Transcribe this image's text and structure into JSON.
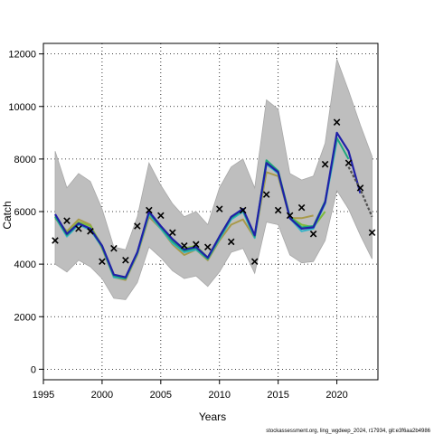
{
  "chart_data": {
    "type": "line",
    "xlabel": "Years",
    "ylabel": "Catch",
    "xlim": [
      1995,
      2023.5
    ],
    "ylim": [
      -400,
      12400
    ],
    "xticks": [
      1995,
      2000,
      2005,
      2010,
      2015,
      2020
    ],
    "yticks": [
      0,
      2000,
      4000,
      6000,
      8000,
      10000,
      12000
    ],
    "grid": true,
    "footer": "stockassessment.org, ling_wgdeep_2024, r17934, git:e3f6aa2b4986",
    "colors": {
      "band": "#bebebe",
      "band_edge": "#a8a8a8",
      "current": "#2020a8",
      "retro": [
        "#1fa87c",
        "#35b3c8",
        "#7dbb3c",
        "#a89a4a"
      ],
      "observed": "#000000",
      "forecast": "#505050"
    },
    "band": {
      "x": [
        1996,
        1997,
        1998,
        1999,
        2000,
        2001,
        2002,
        2003,
        2004,
        2005,
        2006,
        2007,
        2008,
        2009,
        2010,
        2011,
        2012,
        2013,
        2014,
        2015,
        2016,
        2017,
        2018,
        2019,
        2020,
        2021,
        2022,
        2023
      ],
      "upper": [
        8300,
        6900,
        7450,
        7150,
        6100,
        4650,
        4550,
        5800,
        7850,
        7000,
        6300,
        5800,
        6000,
        5500,
        6900,
        7700,
        8000,
        6900,
        10250,
        9900,
        7450,
        7200,
        7350,
        8600,
        11800,
        10600,
        9300,
        8100
      ],
      "lower": [
        4000,
        3700,
        4150,
        3900,
        3450,
        2700,
        2650,
        3300,
        4650,
        4250,
        3750,
        3450,
        3550,
        3150,
        3700,
        4450,
        4600,
        3650,
        5600,
        5500,
        4350,
        4050,
        4100,
        4900,
        6800,
        6100,
        5100,
        4200
      ]
    },
    "observed": {
      "name": "Observed catch",
      "x": [
        1996,
        1997,
        1998,
        1999,
        2000,
        2001,
        2002,
        2003,
        2004,
        2005,
        2006,
        2007,
        2008,
        2009,
        2010,
        2011,
        2012,
        2013,
        2014,
        2015,
        2016,
        2017,
        2018,
        2019,
        2020,
        2021,
        2022,
        2023
      ],
      "y": [
        4900,
        5650,
        5350,
        5250,
        4100,
        4600,
        4150,
        5450,
        6050,
        5850,
        5200,
        4700,
        4750,
        4650,
        6100,
        4850,
        6050,
        4100,
        6650,
        6050,
        5850,
        6150,
        5150,
        7800,
        9400,
        7850,
        6900,
        5200
      ]
    },
    "forecast": {
      "x": [
        2021,
        2022,
        2023
      ],
      "y": [
        7700,
        6850,
        5800
      ]
    },
    "series": [
      {
        "x": [
          1996,
          1997,
          1998,
          1999,
          2000,
          2001,
          2002,
          2003,
          2004,
          2005,
          2006,
          2007,
          2008,
          2009,
          2010,
          2011,
          2012,
          2013,
          2014,
          2015,
          2016,
          2017,
          2018,
          2019,
          2020,
          2021,
          2022
        ],
        "y": [
          5900,
          5150,
          5550,
          5350,
          4700,
          3600,
          3500,
          4450,
          6000,
          5450,
          4950,
          4550,
          4650,
          4250,
          5050,
          5800,
          6100,
          5100,
          7850,
          7500,
          5750,
          5350,
          5400,
          6350,
          9000,
          8300,
          6700
        ]
      },
      {
        "x": [
          1996,
          1997,
          1998,
          1999,
          2000,
          2001,
          2002,
          2003,
          2004,
          2005,
          2006,
          2007,
          2008,
          2009,
          2010,
          2011,
          2012,
          2013,
          2014,
          2015,
          2016,
          2017,
          2018,
          2019,
          2020,
          2021
        ],
        "y": [
          5800,
          5100,
          5550,
          5350,
          4650,
          3550,
          3450,
          4450,
          5950,
          5400,
          4850,
          4500,
          4600,
          4200,
          5000,
          5750,
          6050,
          5050,
          7950,
          7550,
          5800,
          5400,
          5450,
          6400,
          8800,
          8000
        ]
      },
      {
        "x": [
          1996,
          1997,
          1998,
          1999,
          2000,
          2001,
          2002,
          2003,
          2004,
          2005,
          2006,
          2007,
          2008,
          2009,
          2010,
          2011,
          2012,
          2013,
          2014,
          2015,
          2016,
          2017,
          2018,
          2019,
          2020
        ],
        "y": [
          5800,
          5050,
          5500,
          5300,
          4650,
          3500,
          3450,
          4400,
          5900,
          5350,
          4800,
          4450,
          4550,
          4200,
          4950,
          5700,
          6000,
          5000,
          7800,
          7450,
          5750,
          5250,
          5350,
          6300,
          8700
        ]
      },
      {
        "x": [
          1996,
          1997,
          1998,
          1999,
          2000,
          2001,
          2002,
          2003,
          2004,
          2005,
          2006,
          2007,
          2008,
          2009,
          2010,
          2011,
          2012,
          2013,
          2014,
          2015,
          2016,
          2017,
          2018,
          2019
        ],
        "y": [
          5850,
          5200,
          5600,
          5450,
          4700,
          3600,
          3500,
          4400,
          5950,
          5450,
          4900,
          4600,
          4700,
          4250,
          5050,
          5800,
          6050,
          5050,
          7900,
          7550,
          5800,
          5500,
          5400,
          6000
        ]
      },
      {
        "x": [
          1996,
          1997,
          1998,
          1999,
          2000,
          2001,
          2002,
          2003,
          2004,
          2005,
          2006,
          2007,
          2008,
          2009,
          2010,
          2011,
          2012,
          2013,
          2014,
          2015,
          2016,
          2017,
          2018
        ],
        "y": [
          5750,
          5250,
          5700,
          5500,
          4600,
          3500,
          3400,
          4350,
          5800,
          5350,
          4750,
          4350,
          4550,
          4150,
          4900,
          5500,
          5700,
          5000,
          7500,
          7350,
          5750,
          5750,
          5850
        ]
      }
    ]
  }
}
